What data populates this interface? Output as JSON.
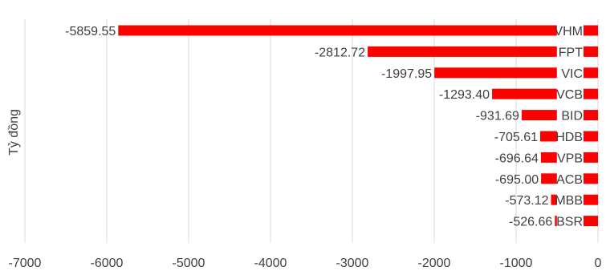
{
  "chart_data": {
    "type": "bar",
    "orientation": "horizontal",
    "categories": [
      "VHM",
      "FPT",
      "VIC",
      "VCB",
      "BID",
      "HDB",
      "VPB",
      "ACB",
      "MBB",
      "BSR"
    ],
    "values": [
      -5859.55,
      -2812.72,
      -1997.95,
      -1293.4,
      -931.69,
      -705.61,
      -696.64,
      -695.0,
      -573.12,
      -526.66
    ],
    "value_labels": [
      "-5859.55",
      "-2812.72",
      "-1997.95",
      "-1293.40",
      "-931.69",
      "-705.61",
      "-696.64",
      "-695.00",
      "-573.12",
      "-526.66"
    ],
    "title": "",
    "xlabel": "",
    "ylabel": "Tỷ đồng",
    "xlim": [
      -7000,
      0
    ],
    "x_ticks": [
      -7000,
      -6000,
      -5000,
      -4000,
      -3000,
      -2000,
      -1000,
      0
    ],
    "x_tick_labels": [
      "-7000",
      "-6000",
      "-5000",
      "-4000",
      "-3000",
      "-2000",
      "-1000",
      "0"
    ],
    "grid": "vertical",
    "bar_color": "#ff0000",
    "legend": "none"
  }
}
